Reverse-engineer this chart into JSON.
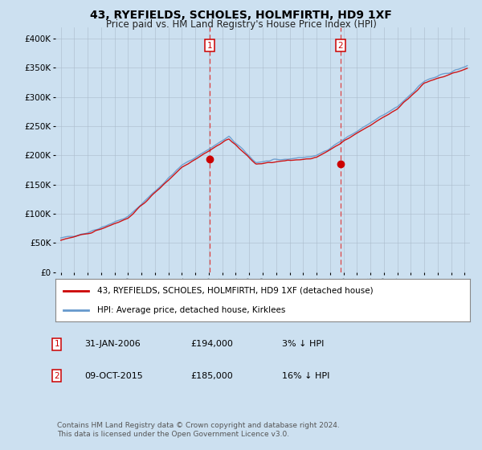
{
  "title": "43, RYEFIELDS, SCHOLES, HOLMFIRTH, HD9 1XF",
  "subtitle": "Price paid vs. HM Land Registry's House Price Index (HPI)",
  "ylabel_ticks": [
    "£0",
    "£50K",
    "£100K",
    "£150K",
    "£200K",
    "£250K",
    "£300K",
    "£350K",
    "£400K"
  ],
  "ytick_values": [
    0,
    50000,
    100000,
    150000,
    200000,
    250000,
    300000,
    350000,
    400000
  ],
  "ylim": [
    0,
    420000
  ],
  "legend_line1": "43, RYEFIELDS, SCHOLES, HOLMFIRTH, HD9 1XF (detached house)",
  "legend_line2": "HPI: Average price, detached house, Kirklees",
  "sale1_date": "31-JAN-2006",
  "sale1_price": "£194,000",
  "sale1_pct": "3% ↓ HPI",
  "sale2_date": "09-OCT-2015",
  "sale2_price": "£185,000",
  "sale2_pct": "16% ↓ HPI",
  "footer": "Contains HM Land Registry data © Crown copyright and database right 2024.\nThis data is licensed under the Open Government Licence v3.0.",
  "sale1_x": 2006.08,
  "sale2_x": 2015.77,
  "sale1_y": 194000,
  "sale2_y": 185000,
  "line_color_red": "#cc0000",
  "line_color_blue": "#6699cc",
  "vline_color": "#dd4444",
  "bg_color": "#cce0f0",
  "plot_bg": "#cce0f0",
  "grid_color": "#aabbcc",
  "annotation_color": "#cc0000",
  "xlim_left": 1994.6,
  "xlim_right": 2025.4
}
